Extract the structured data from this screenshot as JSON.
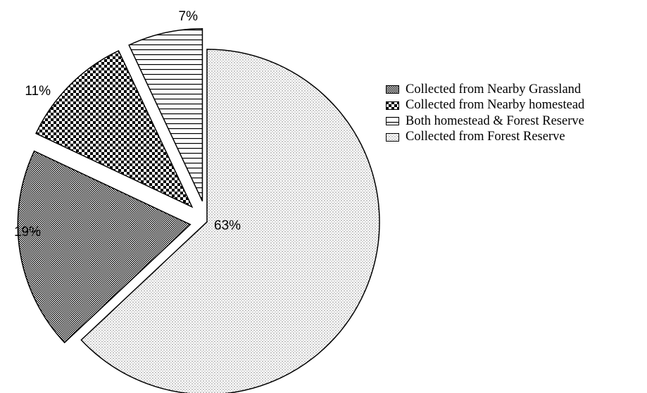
{
  "chart_data": {
    "type": "pie",
    "title": "",
    "slices": [
      {
        "name": "Collected from Forest Reserve",
        "value": 63,
        "label": "63%",
        "pattern": "dots"
      },
      {
        "name": "Collected from Nearby Grassland",
        "value": 19,
        "label": "19%",
        "pattern": "fine-check"
      },
      {
        "name": "Collected from Nearby homestead",
        "value": 11,
        "label": "11%",
        "pattern": "coarse-check"
      },
      {
        "name": "Both homestead & Forest Reserve",
        "value": 7,
        "label": "7%",
        "pattern": "horizontal-lines"
      }
    ],
    "legend": {
      "position": "right",
      "items": [
        {
          "label": "Collected from Nearby Grassland",
          "pattern": "fine-check"
        },
        {
          "label": "Collected from Nearby homestead",
          "pattern": "coarse-check"
        },
        {
          "label": "Both homestead & Forest Reserve",
          "pattern": "horizontal-lines"
        },
        {
          "label": "Collected from Forest Reserve",
          "pattern": "dots"
        }
      ]
    },
    "colors": {
      "fill": "#ffffff",
      "stroke": "#000000",
      "ink": "#000000"
    }
  }
}
